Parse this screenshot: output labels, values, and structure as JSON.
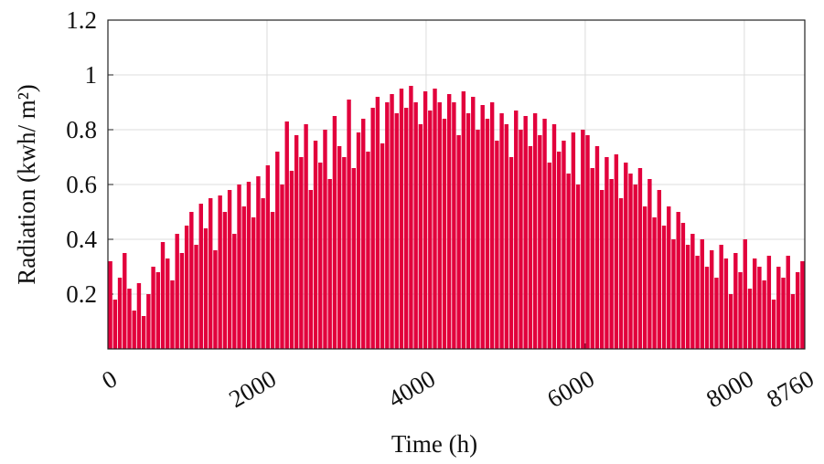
{
  "chart_data": {
    "type": "spike",
    "xlabel": "Time (h)",
    "ylabel": "Radiation (kwh/ m²)",
    "xlim": [
      0,
      8760
    ],
    "ylim": [
      0,
      1.2
    ],
    "xticks": [
      0,
      2000,
      4000,
      6000,
      8000,
      8760
    ],
    "yticks": [
      0.2,
      0.4,
      0.6,
      0.8,
      1,
      1.2
    ],
    "grid": true,
    "color": "#e2003c",
    "x": [
      30,
      90,
      150,
      210,
      270,
      330,
      390,
      450,
      510,
      570,
      630,
      690,
      750,
      810,
      870,
      930,
      990,
      1050,
      1110,
      1170,
      1230,
      1290,
      1350,
      1410,
      1470,
      1530,
      1590,
      1650,
      1710,
      1770,
      1830,
      1890,
      1950,
      2010,
      2070,
      2130,
      2190,
      2250,
      2310,
      2370,
      2430,
      2490,
      2550,
      2610,
      2670,
      2730,
      2790,
      2850,
      2910,
      2970,
      3030,
      3090,
      3150,
      3210,
      3270,
      3330,
      3390,
      3450,
      3510,
      3570,
      3630,
      3690,
      3750,
      3810,
      3870,
      3930,
      3990,
      4050,
      4110,
      4170,
      4230,
      4290,
      4350,
      4410,
      4470,
      4530,
      4590,
      4650,
      4710,
      4770,
      4830,
      4890,
      4950,
      5010,
      5070,
      5130,
      5190,
      5250,
      5310,
      5370,
      5430,
      5490,
      5550,
      5610,
      5670,
      5730,
      5790,
      5850,
      5910,
      5970,
      6030,
      6090,
      6150,
      6210,
      6270,
      6330,
      6390,
      6450,
      6510,
      6570,
      6630,
      6690,
      6750,
      6810,
      6870,
      6930,
      6990,
      7050,
      7110,
      7170,
      7230,
      7290,
      7350,
      7410,
      7470,
      7530,
      7590,
      7650,
      7710,
      7770,
      7830,
      7890,
      7950,
      8010,
      8070,
      8130,
      8190,
      8250,
      8310,
      8370,
      8430,
      8490,
      8550,
      8610,
      8670,
      8730
    ],
    "values": [
      0.32,
      0.18,
      0.26,
      0.35,
      0.22,
      0.14,
      0.24,
      0.12,
      0.2,
      0.3,
      0.28,
      0.39,
      0.33,
      0.25,
      0.42,
      0.35,
      0.45,
      0.5,
      0.38,
      0.53,
      0.44,
      0.55,
      0.36,
      0.56,
      0.5,
      0.58,
      0.42,
      0.6,
      0.52,
      0.61,
      0.48,
      0.63,
      0.55,
      0.67,
      0.5,
      0.72,
      0.6,
      0.83,
      0.65,
      0.78,
      0.7,
      0.82,
      0.58,
      0.76,
      0.68,
      0.8,
      0.62,
      0.85,
      0.74,
      0.7,
      0.91,
      0.66,
      0.79,
      0.84,
      0.72,
      0.88,
      0.92,
      0.75,
      0.9,
      0.93,
      0.86,
      0.95,
      0.88,
      0.96,
      0.9,
      0.82,
      0.94,
      0.87,
      0.95,
      0.9,
      0.84,
      0.93,
      0.9,
      0.78,
      0.94,
      0.86,
      0.92,
      0.8,
      0.89,
      0.84,
      0.9,
      0.76,
      0.86,
      0.82,
      0.7,
      0.87,
      0.8,
      0.85,
      0.74,
      0.86,
      0.78,
      0.84,
      0.68,
      0.82,
      0.72,
      0.76,
      0.64,
      0.79,
      0.6,
      0.8,
      0.78,
      0.66,
      0.74,
      0.58,
      0.7,
      0.62,
      0.71,
      0.55,
      0.68,
      0.64,
      0.6,
      0.66,
      0.52,
      0.62,
      0.48,
      0.58,
      0.45,
      0.52,
      0.4,
      0.5,
      0.46,
      0.38,
      0.42,
      0.34,
      0.4,
      0.3,
      0.36,
      0.26,
      0.38,
      0.33,
      0.2,
      0.35,
      0.28,
      0.4,
      0.22,
      0.33,
      0.3,
      0.25,
      0.34,
      0.18,
      0.3,
      0.26,
      0.34,
      0.2,
      0.28,
      0.32
    ]
  }
}
